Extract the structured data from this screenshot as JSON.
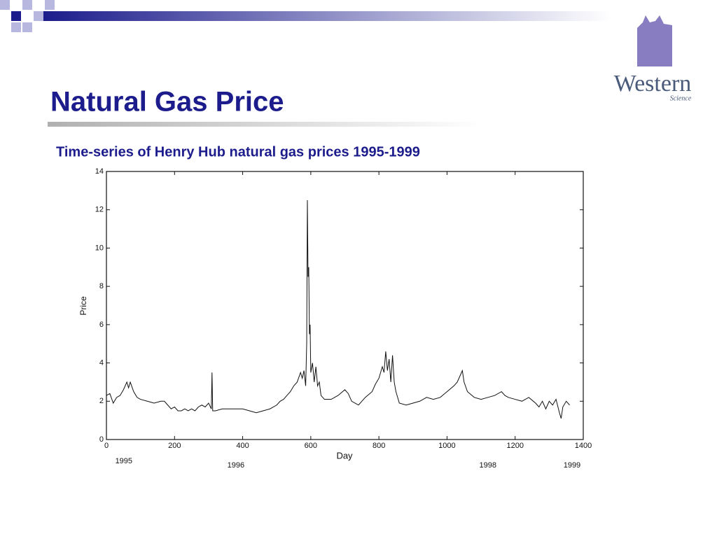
{
  "header": {
    "title": "Natural Gas Price",
    "subtitle": "Time-series of Henry Hub natural gas prices 1995-1999"
  },
  "logo": {
    "name": "Western",
    "unit": "Science"
  },
  "chart_data": {
    "type": "line",
    "xlabel": "Day",
    "ylabel": "Price",
    "color": "#111111",
    "xlim": [
      0,
      1400
    ],
    "ylim": [
      0,
      14
    ],
    "xticks": [
      0,
      200,
      400,
      600,
      800,
      1000,
      1200,
      1400
    ],
    "yticks": [
      0,
      2,
      4,
      6,
      8,
      10,
      12,
      14
    ],
    "annotations": [
      {
        "text": "1995",
        "x": 51
      },
      {
        "text": "1996",
        "x": 380
      },
      {
        "text": "1998",
        "x": 1120
      },
      {
        "text": "1999",
        "x": 1367
      }
    ],
    "x": [
      0,
      10,
      20,
      30,
      40,
      50,
      60,
      65,
      70,
      80,
      90,
      100,
      120,
      140,
      160,
      170,
      180,
      190,
      200,
      210,
      220,
      230,
      240,
      250,
      260,
      270,
      280,
      290,
      300,
      308,
      310,
      312,
      320,
      340,
      360,
      380,
      400,
      420,
      440,
      460,
      480,
      500,
      510,
      520,
      530,
      540,
      550,
      560,
      570,
      575,
      580,
      585,
      588,
      590,
      592,
      594,
      596,
      598,
      600,
      605,
      610,
      615,
      620,
      625,
      630,
      640,
      660,
      680,
      700,
      710,
      720,
      740,
      760,
      780,
      790,
      800,
      810,
      815,
      820,
      825,
      830,
      835,
      840,
      845,
      850,
      860,
      880,
      900,
      920,
      940,
      960,
      980,
      1000,
      1020,
      1030,
      1040,
      1045,
      1050,
      1060,
      1080,
      1100,
      1120,
      1140,
      1160,
      1170,
      1180,
      1200,
      1220,
      1240,
      1260,
      1270,
      1280,
      1290,
      1300,
      1310,
      1320,
      1330,
      1335,
      1340,
      1350,
      1360
    ],
    "values": [
      2.3,
      2.4,
      1.9,
      2.2,
      2.3,
      2.6,
      3.0,
      2.7,
      3.0,
      2.5,
      2.2,
      2.1,
      2.0,
      1.9,
      2.0,
      2.0,
      1.8,
      1.6,
      1.7,
      1.5,
      1.5,
      1.6,
      1.5,
      1.6,
      1.5,
      1.7,
      1.8,
      1.7,
      1.9,
      1.6,
      3.5,
      1.5,
      1.5,
      1.6,
      1.6,
      1.6,
      1.6,
      1.5,
      1.4,
      1.5,
      1.6,
      1.8,
      2.0,
      2.1,
      2.3,
      2.5,
      2.8,
      3.0,
      3.5,
      3.2,
      3.6,
      2.8,
      5.0,
      12.5,
      8.5,
      9.0,
      5.5,
      6.0,
      3.5,
      4.0,
      3.0,
      3.8,
      2.8,
      3.0,
      2.3,
      2.1,
      2.1,
      2.3,
      2.6,
      2.4,
      2.0,
      1.8,
      2.2,
      2.5,
      2.9,
      3.2,
      3.8,
      3.5,
      4.6,
      3.6,
      4.2,
      3.0,
      4.4,
      3.0,
      2.5,
      1.9,
      1.8,
      1.9,
      2.0,
      2.2,
      2.1,
      2.2,
      2.5,
      2.8,
      3.0,
      3.4,
      3.6,
      3.0,
      2.5,
      2.2,
      2.1,
      2.2,
      2.3,
      2.5,
      2.3,
      2.2,
      2.1,
      2.0,
      2.2,
      1.9,
      1.7,
      2.0,
      1.6,
      2.0,
      1.8,
      2.1,
      1.4,
      1.1,
      1.7,
      2.0,
      1.8
    ]
  }
}
